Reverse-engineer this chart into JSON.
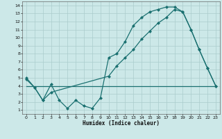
{
  "bg_color": "#cce8e8",
  "grid_color": "#aacccc",
  "line_color": "#1a7070",
  "marker": "D",
  "markersize": 2.0,
  "linewidth": 0.9,
  "xlabel": "Humidex (Indice chaleur)",
  "xlim": [
    -0.5,
    23.5
  ],
  "ylim": [
    0.5,
    14.5
  ],
  "xticks": [
    0,
    1,
    2,
    3,
    4,
    5,
    6,
    7,
    8,
    9,
    10,
    11,
    12,
    13,
    14,
    15,
    16,
    17,
    18,
    19,
    20,
    21,
    22,
    23
  ],
  "yticks": [
    1,
    2,
    3,
    4,
    5,
    6,
    7,
    8,
    9,
    10,
    11,
    12,
    13,
    14
  ],
  "curve1_x": [
    0,
    1,
    2,
    3,
    4,
    5,
    6,
    7,
    8,
    9,
    10,
    11,
    12,
    13,
    14,
    15,
    16,
    17,
    18,
    19,
    20,
    21,
    22,
    23
  ],
  "curve1_y": [
    5.0,
    3.8,
    2.2,
    4.2,
    2.2,
    1.2,
    2.2,
    1.5,
    1.2,
    2.5,
    7.5,
    8.0,
    9.5,
    11.5,
    12.5,
    13.2,
    13.5,
    13.8,
    13.8,
    13.2,
    11.0,
    8.5,
    6.2,
    4.0
  ],
  "curve2_x": [
    0,
    23
  ],
  "curve2_y": [
    4.0,
    4.0
  ],
  "curve3_x": [
    0,
    1,
    2,
    3,
    10,
    11,
    12,
    13,
    14,
    15,
    16,
    17,
    18,
    19,
    20,
    21,
    22,
    23
  ],
  "curve3_y": [
    4.8,
    3.8,
    2.2,
    3.2,
    5.2,
    6.5,
    7.5,
    8.5,
    9.8,
    10.8,
    11.8,
    12.5,
    13.5,
    13.2,
    11.0,
    8.5,
    6.2,
    4.0
  ]
}
